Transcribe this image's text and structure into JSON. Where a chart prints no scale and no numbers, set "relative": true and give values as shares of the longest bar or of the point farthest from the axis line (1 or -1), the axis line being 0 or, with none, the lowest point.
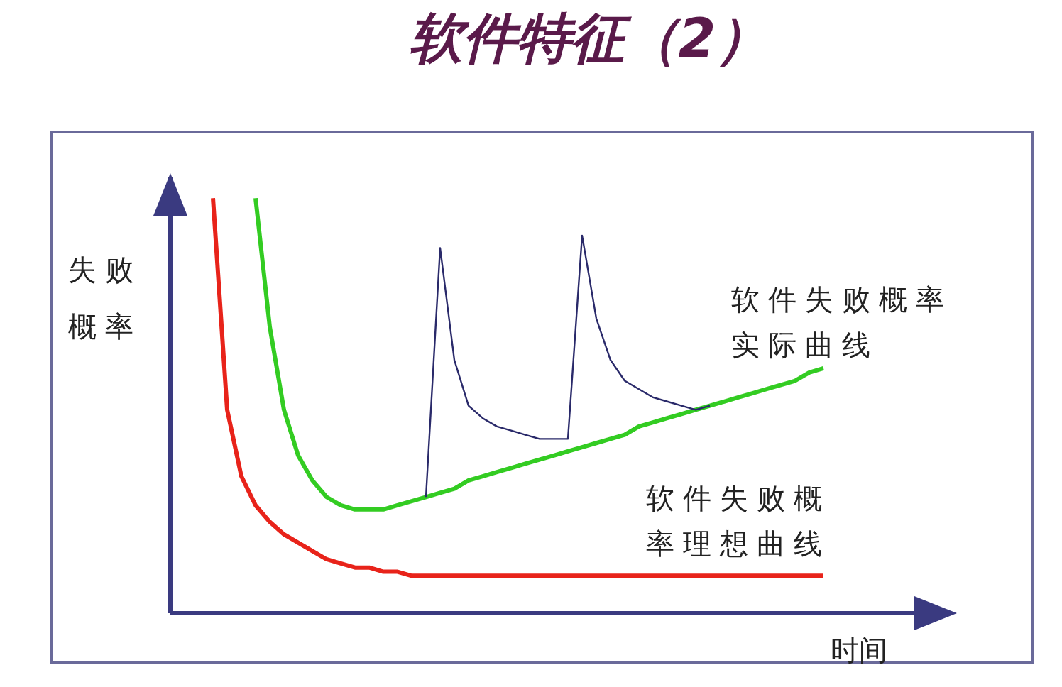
{
  "chart_data": {
    "type": "line",
    "title": "软件特征（2）",
    "xlabel": "时间",
    "ylabel": "失败概率",
    "relative": true,
    "marker": "none",
    "categories": [
      null,
      null,
      null,
      null,
      null,
      null,
      null,
      null,
      null,
      null,
      null,
      null,
      null,
      null,
      null,
      null,
      null,
      null,
      null,
      null,
      null,
      null,
      null,
      null,
      null,
      null,
      null,
      null,
      null,
      null,
      null,
      null,
      null,
      null,
      null,
      null,
      null,
      null,
      null,
      null,
      null,
      null,
      null,
      null,
      null,
      null,
      null
    ],
    "series": [
      {
        "name": "软件失败概率理想曲线",
        "color": "#e8231a",
        "values": [
          null,
          null,
          null,
          1.0,
          0.49,
          0.33,
          0.26,
          0.22,
          0.19,
          0.17,
          0.15,
          0.13,
          0.12,
          0.11,
          0.11,
          0.1,
          0.1,
          0.09,
          0.09,
          0.09,
          0.09,
          0.09,
          0.09,
          0.09,
          0.09,
          0.09,
          0.09,
          0.09,
          0.09,
          0.09,
          0.09,
          0.09,
          0.09,
          0.09,
          0.09,
          0.09,
          0.09,
          0.09,
          0.09,
          0.09,
          0.09,
          0.09,
          0.09,
          0.09,
          0.09,
          0.09,
          0.09
        ]
      },
      {
        "name": "软件失败概率实际曲线",
        "color": "#33cc22",
        "values": [
          null,
          null,
          null,
          null,
          null,
          null,
          1.0,
          0.69,
          0.49,
          0.38,
          0.32,
          0.28,
          0.26,
          0.25,
          0.25,
          0.25,
          0.26,
          0.27,
          0.28,
          0.29,
          0.3,
          0.32,
          0.33,
          0.34,
          0.35,
          0.36,
          0.37,
          0.38,
          0.39,
          0.4,
          0.41,
          0.42,
          0.43,
          0.45,
          0.46,
          0.47,
          0.48,
          0.49,
          0.5,
          0.51,
          0.52,
          0.53,
          0.54,
          0.55,
          0.56,
          0.58,
          0.59
        ]
      },
      {
        "color": "#2a2a6a",
        "values": [
          null,
          null,
          null,
          null,
          null,
          null,
          null,
          null,
          null,
          null,
          null,
          null,
          null,
          null,
          null,
          null,
          null,
          null,
          0.28,
          0.88,
          0.61,
          0.5,
          0.47,
          0.45,
          0.44,
          0.43,
          0.42,
          0.42,
          0.42,
          0.91,
          0.71,
          0.61,
          0.56,
          0.54,
          0.52,
          0.51,
          0.5,
          0.49,
          0.5,
          null,
          null,
          null,
          null,
          null,
          null,
          null,
          null
        ]
      }
    ]
  }
}
